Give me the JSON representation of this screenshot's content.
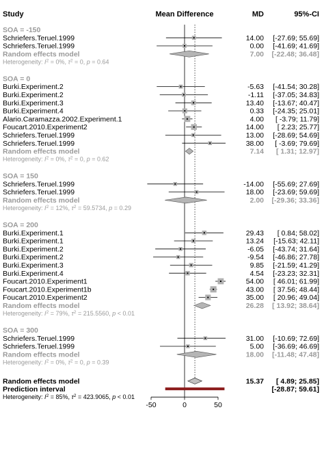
{
  "headers": {
    "study": "Study",
    "effect": "Mean Difference",
    "md": "MD",
    "ci": "95%-CI"
  },
  "colors": {
    "square": "#b0b0b0",
    "subgroup_diamond": "#b5b5b5",
    "overall_diamond": "#c0c0c0",
    "prediction": "#8b1a1a",
    "muted_text": "#9a9a9a"
  },
  "chart_data": {
    "type": "forest",
    "xlim": [
      -60,
      60
    ],
    "ticks": [
      -50,
      0,
      50
    ],
    "tick_labels": [
      "-50",
      "0",
      "50"
    ],
    "vertical_dotted_at": 15.37,
    "groups": [
      {
        "label": "SOA = -150",
        "studies": [
          {
            "name": "Schriefers.Teruel.1999",
            "md": 14.0,
            "lo": -27.69,
            "hi": 55.69,
            "md_text": "14.00",
            "ci_text": "[-27.69; 55.69]",
            "w": 0.9
          },
          {
            "name": "Schriefers.Teruel.1999",
            "md": 0.0,
            "lo": -41.69,
            "hi": 41.69,
            "md_text": "0.00",
            "ci_text": "[-41.69; 41.69]",
            "w": 0.9
          }
        ],
        "re": {
          "label": "Random effects model",
          "md": 7.0,
          "lo": -22.48,
          "hi": 36.48,
          "md_text": "7.00",
          "ci_text": "[-22.48; 36.48]"
        },
        "het": {
          "prefix": "Heterogeneity: ",
          "i2": "I",
          "sq": "2",
          "rest": " = 0%, ",
          "tau": "τ",
          "tau_sq": "2",
          "rest2": " = 0, ",
          "p": "p",
          "rest3": " = 0.64"
        }
      },
      {
        "label": "SOA = 0",
        "studies": [
          {
            "name": "Burki.Experiment.2",
            "md": -5.63,
            "lo": -41.54,
            "hi": 30.28,
            "md_text": "-5.63",
            "ci_text": "[-41.54; 30.28]",
            "w": 0.9
          },
          {
            "name": "Burki.Experiment.2",
            "md": -1.11,
            "lo": -37.05,
            "hi": 34.83,
            "md_text": "-1.11",
            "ci_text": "[-37.05; 34.83]",
            "w": 0.9
          },
          {
            "name": "Burki.Experiment.3",
            "md": 13.4,
            "lo": -13.67,
            "hi": 40.47,
            "md_text": "13.40",
            "ci_text": "[-13.67; 40.47]",
            "w": 1.05
          },
          {
            "name": "Burki.Experiment.4",
            "md": 0.33,
            "lo": -24.35,
            "hi": 25.01,
            "md_text": "0.33",
            "ci_text": "[-24.35; 25.01]",
            "w": 1.1
          },
          {
            "name": "Alario.Caramazza.2002.Experiment.1",
            "md": 4.0,
            "lo": -3.79,
            "hi": 11.79,
            "md_text": "4.00",
            "ci_text": "[ -3.79; 11.79]",
            "w": 1.35
          },
          {
            "name": "Foucart.2010.Experiment2",
            "md": 14.0,
            "lo": 2.23,
            "hi": 25.77,
            "md_text": "14.00",
            "ci_text": "[  2.23; 25.77]",
            "w": 1.3
          },
          {
            "name": "Schriefers.Teruel.1999",
            "md": 13.0,
            "lo": -28.69,
            "hi": 54.69,
            "md_text": "13.00",
            "ci_text": "[-28.69; 54.69]",
            "w": 0.85
          },
          {
            "name": "Schriefers.Teruel.1999",
            "md": 38.0,
            "lo": -3.69,
            "hi": 79.69,
            "md_text": "38.00",
            "ci_text": "[ -3.69; 79.69]",
            "w": 0.85
          }
        ],
        "re": {
          "label": "Random effects model",
          "md": 7.14,
          "lo": 1.31,
          "hi": 12.97,
          "md_text": "7.14",
          "ci_text": "[  1.31; 12.97]"
        },
        "het": {
          "prefix": "Heterogeneity: ",
          "i2": "I",
          "sq": "2",
          "rest": " = 0%, ",
          "tau": "τ",
          "tau_sq": "2",
          "rest2": " = 0, ",
          "p": "p",
          "rest3": " = 0.62"
        }
      },
      {
        "label": "SOA = 150",
        "studies": [
          {
            "name": "Schriefers.Teruel.1999",
            "md": -14.0,
            "lo": -55.69,
            "hi": 27.69,
            "md_text": "-14.00",
            "ci_text": "[-55.69; 27.69]",
            "w": 0.85
          },
          {
            "name": "Schriefers.Teruel.1999",
            "md": 18.0,
            "lo": -23.69,
            "hi": 59.69,
            "md_text": "18.00",
            "ci_text": "[-23.69; 59.69]",
            "w": 0.85
          }
        ],
        "re": {
          "label": "Random effects model",
          "md": 2.0,
          "lo": -29.36,
          "hi": 33.36,
          "md_text": "2.00",
          "ci_text": "[-29.36; 33.36]"
        },
        "het": {
          "prefix": "Heterogeneity: ",
          "i2": "I",
          "sq": "2",
          "rest": " = 12%, ",
          "tau": "τ",
          "tau_sq": "2",
          "rest2": " = 59.5734, ",
          "p": "p",
          "rest3": " = 0.29"
        }
      },
      {
        "label": "SOA = 200",
        "studies": [
          {
            "name": "Burki.Experiment.1",
            "md": 29.43,
            "lo": 0.84,
            "hi": 58.02,
            "md_text": "29.43",
            "ci_text": "[  0.84; 58.02]",
            "w": 1.0
          },
          {
            "name": "Burki.Experiment.1",
            "md": 13.24,
            "lo": -15.63,
            "hi": 42.11,
            "md_text": "13.24",
            "ci_text": "[-15.63; 42.11]",
            "w": 0.95
          },
          {
            "name": "Burki.Experiment.2",
            "md": -6.05,
            "lo": -43.74,
            "hi": 31.64,
            "md_text": "-6.05",
            "ci_text": "[-43.74; 31.64]",
            "w": 0.85
          },
          {
            "name": "Burki.Experiment.2",
            "md": -9.54,
            "lo": -46.86,
            "hi": 27.78,
            "md_text": "-9.54",
            "ci_text": "[-46.86; 27.78]",
            "w": 0.85
          },
          {
            "name": "Burki.Experiment.3",
            "md": 9.85,
            "lo": -21.59,
            "hi": 41.29,
            "md_text": "9.85",
            "ci_text": "[-21.59; 41.29]",
            "w": 0.95
          },
          {
            "name": "Burki.Experiment.4",
            "md": 4.54,
            "lo": -23.23,
            "hi": 32.31,
            "md_text": "4.54",
            "ci_text": "[-23.23; 32.31]",
            "w": 1.0
          },
          {
            "name": "Foucart.2010.Experiment1",
            "md": 54.0,
            "lo": 46.01,
            "hi": 61.99,
            "md_text": "54.00",
            "ci_text": "[ 46.01; 61.99]",
            "w": 1.35
          },
          {
            "name": "Foucart.2010.Experiment1b",
            "md": 43.0,
            "lo": 37.56,
            "hi": 48.44,
            "md_text": "43.00",
            "ci_text": "[ 37.56; 48.44]",
            "w": 1.4
          },
          {
            "name": "Foucart.2010.Experiment2",
            "md": 35.0,
            "lo": 20.96,
            "hi": 49.04,
            "md_text": "35.00",
            "ci_text": "[ 20.96; 49.04]",
            "w": 1.25
          }
        ],
        "re": {
          "label": "Random effects model",
          "md": 26.28,
          "lo": 13.92,
          "hi": 38.64,
          "md_text": "26.28",
          "ci_text": "[ 13.92; 38.64]"
        },
        "het": {
          "prefix": "Heterogeneity: ",
          "i2": "I",
          "sq": "2",
          "rest": " = 79%, ",
          "tau": "τ",
          "tau_sq": "2",
          "rest2": " = 215.5560, ",
          "p": "p",
          "rest3": " < 0.01"
        }
      },
      {
        "label": "SOA = 300",
        "studies": [
          {
            "name": "Schriefers.Teruel.1999",
            "md": 31.0,
            "lo": -10.69,
            "hi": 72.69,
            "md_text": "31.00",
            "ci_text": "[-10.69; 72.69]",
            "w": 0.85
          },
          {
            "name": "Schriefers.Teruel.1999",
            "md": 5.0,
            "lo": -36.69,
            "hi": 46.69,
            "md_text": "5.00",
            "ci_text": "[-36.69; 46.69]",
            "w": 0.85
          }
        ],
        "re": {
          "label": "Random effects model",
          "md": 18.0,
          "lo": -11.48,
          "hi": 47.48,
          "md_text": "18.00",
          "ci_text": "[-11.48; 47.48]"
        },
        "het": {
          "prefix": "Heterogeneity: ",
          "i2": "I",
          "sq": "2",
          "rest": " = 0%, ",
          "tau": "τ",
          "tau_sq": "2",
          "rest2": " = 0, ",
          "p": "p",
          "rest3": " = 0.39"
        }
      }
    ],
    "overall": {
      "label": "Random effects model",
      "md": 15.37,
      "lo": 4.89,
      "hi": 25.85,
      "md_text": "15.37",
      "ci_text": "[  4.89; 25.85]"
    },
    "prediction": {
      "label": "Prediction interval",
      "lo": -28.87,
      "hi": 59.61,
      "ci_text": "[-28.87; 59.61]"
    },
    "overall_het": {
      "prefix": "Heterogeneity: ",
      "i2": "I",
      "sq": "2",
      "rest": " = 85%, ",
      "tau": "τ",
      "tau_sq": "2",
      "rest2": " = 423.9065, ",
      "p": "p",
      "rest3": " < 0.01"
    }
  }
}
